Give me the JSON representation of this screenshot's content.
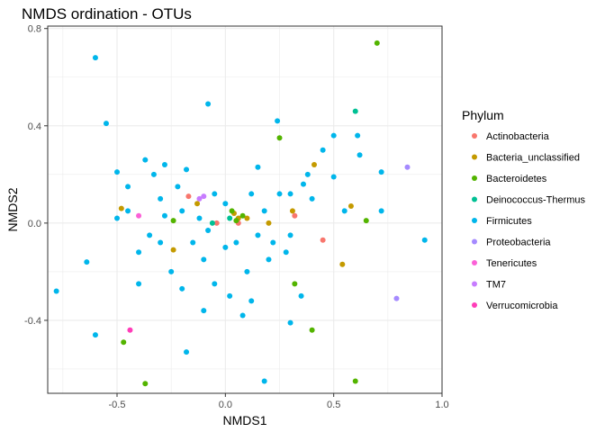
{
  "chart_data": {
    "type": "scatter",
    "title": "NMDS ordination - OTUs",
    "xlabel": "NMDS1",
    "ylabel": "NMDS2",
    "xlim": [
      -0.82,
      1.0
    ],
    "ylim": [
      -0.7,
      0.81
    ],
    "xticks": [
      -0.5,
      0.0,
      0.5,
      1.0
    ],
    "xtick_labels": [
      "-0.5",
      "0.0",
      "0.5",
      "1.0"
    ],
    "yticks": [
      -0.4,
      0.0,
      0.4,
      0.8
    ],
    "ytick_labels": [
      "-0.4",
      "0.0",
      "0.4",
      "0.8"
    ],
    "grid": true,
    "legend": {
      "title": "Phylum",
      "position": "right"
    },
    "series": [
      {
        "name": "Actinobacteria",
        "color": "#F8766D",
        "points": [
          [
            -0.17,
            0.11
          ],
          [
            -0.04,
            0.0
          ],
          [
            0.32,
            0.03
          ],
          [
            0.45,
            -0.07
          ],
          [
            0.06,
            0.0
          ]
        ]
      },
      {
        "name": "Bacteria_unclassified",
        "color": "#C49A00",
        "points": [
          [
            -0.48,
            0.06
          ],
          [
            -0.24,
            -0.11
          ],
          [
            -0.13,
            0.08
          ],
          [
            0.04,
            0.04
          ],
          [
            0.1,
            0.02
          ],
          [
            0.31,
            0.05
          ],
          [
            0.41,
            0.24
          ],
          [
            0.54,
            -0.17
          ],
          [
            0.58,
            0.07
          ],
          [
            0.2,
            0.0
          ],
          [
            0.06,
            0.02
          ]
        ]
      },
      {
        "name": "Bacteroidetes",
        "color": "#53B400",
        "points": [
          [
            0.7,
            0.74
          ],
          [
            0.25,
            0.35
          ],
          [
            -0.47,
            -0.49
          ],
          [
            -0.37,
            -0.66
          ],
          [
            0.6,
            -0.65
          ],
          [
            0.4,
            -0.44
          ],
          [
            0.32,
            -0.25
          ],
          [
            -0.24,
            0.01
          ],
          [
            0.03,
            0.05
          ],
          [
            0.05,
            0.01
          ],
          [
            0.65,
            0.01
          ],
          [
            0.08,
            0.03
          ]
        ]
      },
      {
        "name": "Deinococcus-Thermus",
        "color": "#00C094",
        "points": [
          [
            0.6,
            0.46
          ],
          [
            0.02,
            0.02
          ],
          [
            -0.06,
            0.0
          ]
        ]
      },
      {
        "name": "Firmicutes",
        "color": "#00B6EB",
        "points": [
          [
            -0.6,
            0.68
          ],
          [
            -0.08,
            0.49
          ],
          [
            -0.55,
            0.41
          ],
          [
            -0.5,
            0.21
          ],
          [
            -0.37,
            0.26
          ],
          [
            -0.28,
            0.24
          ],
          [
            -0.18,
            0.22
          ],
          [
            0.24,
            0.42
          ],
          [
            0.5,
            0.36
          ],
          [
            0.61,
            0.36
          ],
          [
            0.5,
            0.19
          ],
          [
            0.72,
            0.21
          ],
          [
            0.92,
            -0.07
          ],
          [
            -0.78,
            -0.28
          ],
          [
            -0.64,
            -0.16
          ],
          [
            -0.6,
            -0.46
          ],
          [
            -0.18,
            -0.53
          ],
          [
            0.18,
            -0.65
          ],
          [
            0.3,
            -0.41
          ],
          [
            0.08,
            -0.38
          ],
          [
            -0.1,
            -0.36
          ],
          [
            -0.2,
            -0.27
          ],
          [
            -0.4,
            -0.25
          ],
          [
            -0.45,
            0.05
          ],
          [
            -0.3,
            0.1
          ],
          [
            -0.05,
            0.12
          ],
          [
            0.15,
            0.23
          ],
          [
            0.3,
            0.12
          ],
          [
            0.4,
            0.1
          ],
          [
            0.55,
            0.05
          ],
          [
            0.72,
            0.05
          ],
          [
            0.38,
            0.2
          ],
          [
            0.25,
            0.12
          ],
          [
            0.0,
            -0.1
          ],
          [
            -0.1,
            -0.15
          ],
          [
            0.1,
            -0.2
          ],
          [
            0.2,
            -0.15
          ],
          [
            0.3,
            -0.05
          ],
          [
            0.35,
            -0.3
          ],
          [
            -0.3,
            -0.08
          ],
          [
            -0.35,
            -0.05
          ],
          [
            -0.4,
            -0.12
          ],
          [
            -0.15,
            -0.08
          ],
          [
            0.15,
            -0.05
          ],
          [
            0.18,
            0.05
          ],
          [
            -0.2,
            0.05
          ],
          [
            -0.12,
            0.02
          ],
          [
            0.0,
            0.08
          ],
          [
            0.12,
            0.12
          ],
          [
            -0.08,
            -0.03
          ],
          [
            0.05,
            -0.08
          ],
          [
            0.22,
            -0.08
          ],
          [
            0.28,
            -0.12
          ],
          [
            -0.25,
            -0.2
          ],
          [
            -0.05,
            -0.25
          ],
          [
            0.02,
            -0.3
          ],
          [
            0.12,
            -0.32
          ],
          [
            0.45,
            0.3
          ],
          [
            0.62,
            0.28
          ],
          [
            -0.45,
            0.15
          ],
          [
            -0.33,
            0.2
          ],
          [
            -0.22,
            0.15
          ],
          [
            0.36,
            0.16
          ],
          [
            -0.5,
            0.02
          ],
          [
            -0.28,
            0.03
          ]
        ]
      },
      {
        "name": "Proteobacteria",
        "color": "#A58AFF",
        "points": [
          [
            0.84,
            0.23
          ],
          [
            0.79,
            -0.31
          ]
        ]
      },
      {
        "name": "Tenericutes",
        "color": "#FB61D7",
        "points": [
          [
            -0.4,
            0.03
          ]
        ]
      },
      {
        "name": "TM7",
        "color": "#C77CFF",
        "points": [
          [
            -0.12,
            0.1
          ],
          [
            -0.1,
            0.11
          ]
        ]
      },
      {
        "name": "Verrucomicrobia",
        "color": "#FF3DB8",
        "points": [
          [
            -0.44,
            -0.44
          ]
        ]
      }
    ]
  }
}
